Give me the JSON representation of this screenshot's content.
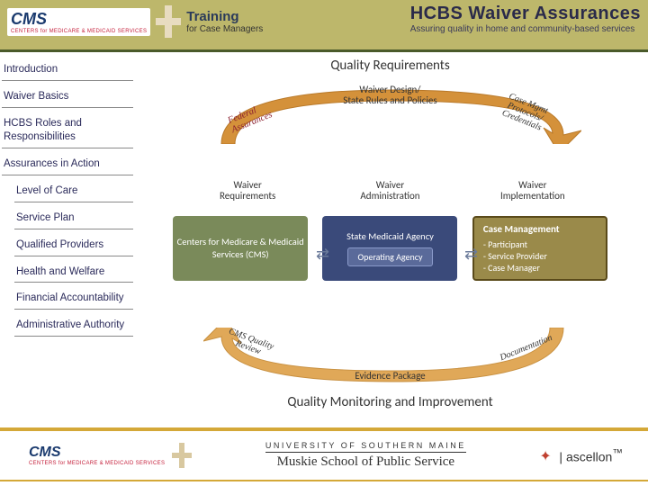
{
  "header": {
    "logo_main": "CMS",
    "logo_sub": "CENTERS for MEDICARE & MEDICAID SERVICES",
    "training_title": "Training",
    "training_sub": "for Case Managers",
    "hcbs_title": "HCBS Waiver Assurances",
    "hcbs_sub": "Assuring quality in home and community-based services",
    "bg_color": "#bdb76b"
  },
  "sidebar": {
    "items": [
      {
        "label": "Introduction",
        "sub": false
      },
      {
        "label": "Waiver Basics",
        "sub": false
      },
      {
        "label": "HCBS Roles and Responsibilities",
        "sub": false
      },
      {
        "label": "Assurances in Action",
        "sub": false
      },
      {
        "label": "Level of Care",
        "sub": true
      },
      {
        "label": "Service Plan",
        "sub": true
      },
      {
        "label": "Qualified Providers",
        "sub": true
      },
      {
        "label": "Health and Welfare",
        "sub": true
      },
      {
        "label": "Financial Accountability",
        "sub": true
      },
      {
        "label": "Administrative Authority",
        "sub": true
      }
    ]
  },
  "diagram": {
    "top_title": "Quality Requirements",
    "bottom_title": "Quality Monitoring and Improvement",
    "top_arrow": {
      "color": "#d4913a",
      "center_label": "Waiver Design/\nState Rules and Policies",
      "left_label": "Federal\nAssurances",
      "right_label": "Case Mgmt\nProtocols/\nCredentials"
    },
    "bottom_arrow": {
      "color": "#e0a858",
      "center_label": "Evidence Package",
      "left_label": "CMS Quality\nReview",
      "right_label": "Documentation"
    },
    "mid_labels": [
      "Waiver\nRequirements",
      "Waiver\nAdministration",
      "Waiver\nImplementation"
    ],
    "boxes": {
      "cms": {
        "bg": "#7a8a5a",
        "text": "Centers for Medicare & Medicaid Services (CMS)"
      },
      "medicaid": {
        "bg": "#3a4a7a",
        "title": "State Medicaid Agency",
        "inner": "Operating Agency"
      },
      "mgmt": {
        "bg": "#9a8a4a",
        "title": "Case Management",
        "items": [
          "Participant",
          "Service Provider",
          "Case Manager"
        ]
      }
    }
  },
  "footer": {
    "cms_main": "CMS",
    "cms_sub": "CENTERS for MEDICARE & MEDICAID SERVICES",
    "univ": "UNIVERSITY OF SOUTHERN MAINE",
    "school": "Muskie School of Public Service",
    "partner": "ascellon",
    "border_color": "#d4a838"
  }
}
